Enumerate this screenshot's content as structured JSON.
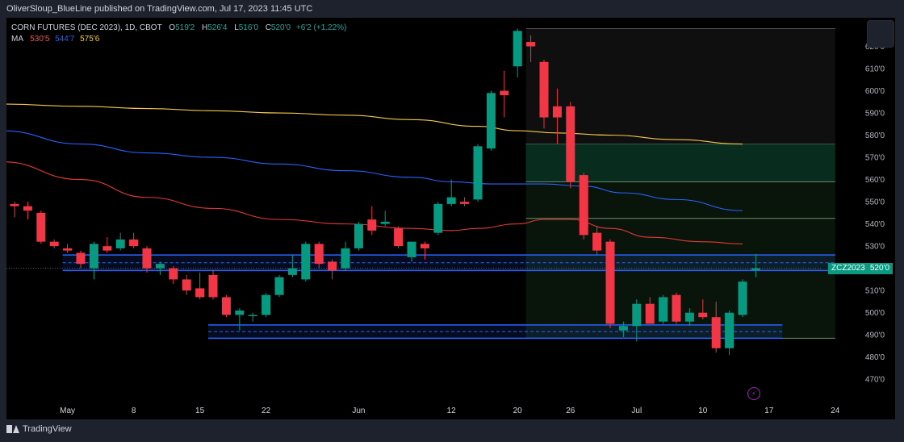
{
  "publisher_line": "OliverSloup_BlueLine published on TradingView.com, Jul 17, 2023 11:45 UTC",
  "legend": {
    "symbol": "CORN FUTURES (DEC 2023), 1D, CBOT",
    "open_label": "O",
    "open": "519'2",
    "high_label": "H",
    "high": "526'4",
    "low_label": "L",
    "low": "516'0",
    "close_label": "C",
    "close": "520'0",
    "change": "+6'2 (+1.22%)",
    "ma_label": "MA",
    "ma1": "530'5",
    "ma2": "544'7",
    "ma3": "575'6"
  },
  "price_tag": {
    "ticker": "ZCZ2023",
    "price": "520'0"
  },
  "brand": "TradingView",
  "colors": {
    "up": "#089981",
    "down": "#f23645",
    "ma1": "#e53935",
    "ma2": "#2962ff",
    "ma3": "#f7c948",
    "zone": "#2962ff"
  },
  "chart_data": {
    "type": "candlestick",
    "title": "CORN FUTURES (DEC 2023), 1D, CBOT",
    "ylim": [
      4650,
      6300
    ],
    "y_ticks": [
      {
        "v": 6200,
        "label": "620'0"
      },
      {
        "v": 6100,
        "label": "610'0"
      },
      {
        "v": 6000,
        "label": "600'0"
      },
      {
        "v": 5900,
        "label": "590'0"
      },
      {
        "v": 5800,
        "label": "580'0"
      },
      {
        "v": 5700,
        "label": "570'0"
      },
      {
        "v": 5600,
        "label": "560'0"
      },
      {
        "v": 5500,
        "label": "550'0"
      },
      {
        "v": 5400,
        "label": "540'0"
      },
      {
        "v": 5300,
        "label": "530'0"
      },
      {
        "v": 5100,
        "label": "510'0"
      },
      {
        "v": 5000,
        "label": "500'0"
      },
      {
        "v": 4900,
        "label": "490'0"
      },
      {
        "v": 4800,
        "label": "480'0"
      },
      {
        "v": 4700,
        "label": "470'0"
      }
    ],
    "x_ticks": [
      {
        "i": 4,
        "label": "May"
      },
      {
        "i": 9,
        "label": "8"
      },
      {
        "i": 14,
        "label": "15"
      },
      {
        "i": 19,
        "label": "22"
      },
      {
        "i": 26,
        "label": "Jun"
      },
      {
        "i": 33,
        "label": "12"
      },
      {
        "i": 38,
        "label": "20"
      },
      {
        "i": 42,
        "label": "26"
      },
      {
        "i": 47,
        "label": "Jul"
      },
      {
        "i": 52,
        "label": "10"
      },
      {
        "i": 57,
        "label": "17"
      },
      {
        "i": 62,
        "label": "24"
      }
    ],
    "candles": [
      {
        "o": 5490,
        "h": 5500,
        "l": 5430,
        "c": 5480
      },
      {
        "o": 5480,
        "h": 5500,
        "l": 5420,
        "c": 5460
      },
      {
        "o": 5450,
        "h": 5460,
        "l": 5310,
        "c": 5320
      },
      {
        "o": 5320,
        "h": 5330,
        "l": 5290,
        "c": 5300
      },
      {
        "o": 5290,
        "h": 5310,
        "l": 5270,
        "c": 5280
      },
      {
        "o": 5270,
        "h": 5280,
        "l": 5200,
        "c": 5220
      },
      {
        "o": 5200,
        "h": 5320,
        "l": 5150,
        "c": 5310
      },
      {
        "o": 5300,
        "h": 5340,
        "l": 5270,
        "c": 5280
      },
      {
        "o": 5290,
        "h": 5360,
        "l": 5280,
        "c": 5330
      },
      {
        "o": 5330,
        "h": 5360,
        "l": 5290,
        "c": 5300
      },
      {
        "o": 5290,
        "h": 5300,
        "l": 5180,
        "c": 5200
      },
      {
        "o": 5200,
        "h": 5230,
        "l": 5170,
        "c": 5220
      },
      {
        "o": 5200,
        "h": 5210,
        "l": 5130,
        "c": 5150
      },
      {
        "o": 5150,
        "h": 5170,
        "l": 5080,
        "c": 5100
      },
      {
        "o": 5110,
        "h": 5180,
        "l": 5060,
        "c": 5070
      },
      {
        "o": 5170,
        "h": 5190,
        "l": 5060,
        "c": 5070
      },
      {
        "o": 5070,
        "h": 5080,
        "l": 4980,
        "c": 4990
      },
      {
        "o": 4990,
        "h": 5020,
        "l": 4920,
        "c": 5010
      },
      {
        "o": 4990,
        "h": 5000,
        "l": 4960,
        "c": 4990
      },
      {
        "o": 4990,
        "h": 5090,
        "l": 4980,
        "c": 5080
      },
      {
        "o": 5080,
        "h": 5170,
        "l": 5070,
        "c": 5160
      },
      {
        "o": 5170,
        "h": 5260,
        "l": 5160,
        "c": 5200
      },
      {
        "o": 5150,
        "h": 5320,
        "l": 5140,
        "c": 5310
      },
      {
        "o": 5310,
        "h": 5320,
        "l": 5200,
        "c": 5220
      },
      {
        "o": 5230,
        "h": 5240,
        "l": 5150,
        "c": 5190
      },
      {
        "o": 5200,
        "h": 5320,
        "l": 5190,
        "c": 5290
      },
      {
        "o": 5290,
        "h": 5410,
        "l": 5280,
        "c": 5400
      },
      {
        "o": 5420,
        "h": 5480,
        "l": 5350,
        "c": 5370
      },
      {
        "o": 5400,
        "h": 5460,
        "l": 5390,
        "c": 5410
      },
      {
        "o": 5380,
        "h": 5390,
        "l": 5290,
        "c": 5300
      },
      {
        "o": 5250,
        "h": 5320,
        "l": 5230,
        "c": 5320
      },
      {
        "o": 5310,
        "h": 5320,
        "l": 5240,
        "c": 5290
      },
      {
        "o": 5360,
        "h": 5500,
        "l": 5350,
        "c": 5490
      },
      {
        "o": 5490,
        "h": 5600,
        "l": 5480,
        "c": 5520
      },
      {
        "o": 5500,
        "h": 5520,
        "l": 5480,
        "c": 5490
      },
      {
        "o": 5510,
        "h": 5760,
        "l": 5500,
        "c": 5750
      },
      {
        "o": 5740,
        "h": 6000,
        "l": 5730,
        "c": 5990
      },
      {
        "o": 6000,
        "h": 6090,
        "l": 5880,
        "c": 5980
      },
      {
        "o": 6110,
        "h": 6280,
        "l": 6060,
        "c": 6270
      },
      {
        "o": 6220,
        "h": 6250,
        "l": 6130,
        "c": 6200
      },
      {
        "o": 6130,
        "h": 6140,
        "l": 5830,
        "c": 5880
      },
      {
        "o": 5930,
        "h": 6010,
        "l": 5760,
        "c": 5880
      },
      {
        "o": 5930,
        "h": 5950,
        "l": 5560,
        "c": 5590
      },
      {
        "o": 5620,
        "h": 5630,
        "l": 5330,
        "c": 5350
      },
      {
        "o": 5360,
        "h": 5390,
        "l": 5260,
        "c": 5280
      },
      {
        "o": 5320,
        "h": 5330,
        "l": 4930,
        "c": 4950
      },
      {
        "o": 4920,
        "h": 4960,
        "l": 4890,
        "c": 4940
      },
      {
        "o": 4940,
        "h": 5060,
        "l": 4870,
        "c": 5040
      },
      {
        "o": 5040,
        "h": 5070,
        "l": 4950,
        "c": 4950
      },
      {
        "o": 4960,
        "h": 5080,
        "l": 4950,
        "c": 5070
      },
      {
        "o": 5080,
        "h": 5090,
        "l": 4950,
        "c": 4960
      },
      {
        "o": 4960,
        "h": 5020,
        "l": 4940,
        "c": 5000
      },
      {
        "o": 5000,
        "h": 5060,
        "l": 4970,
        "c": 4980
      },
      {
        "o": 4980,
        "h": 5050,
        "l": 4820,
        "c": 4840
      },
      {
        "o": 4840,
        "h": 5010,
        "l": 4810,
        "c": 5000
      },
      {
        "o": 4990,
        "h": 5150,
        "l": 4980,
        "c": 5140
      },
      {
        "o": 5192,
        "h": 5265,
        "l": 5160,
        "c": 5200
      }
    ],
    "series": [
      {
        "name": "MA 530'5",
        "anchors": [
          [
            -1,
            5680
          ],
          [
            5,
            5600
          ],
          [
            10,
            5520
          ],
          [
            15,
            5470
          ],
          [
            20,
            5420
          ],
          [
            25,
            5400
          ],
          [
            30,
            5380
          ],
          [
            33,
            5370
          ],
          [
            35,
            5380
          ],
          [
            38,
            5400
          ],
          [
            40,
            5420
          ],
          [
            42,
            5420
          ],
          [
            45,
            5380
          ],
          [
            48,
            5340
          ],
          [
            52,
            5320
          ],
          [
            55,
            5310
          ]
        ]
      },
      {
        "name": "MA 544'7",
        "anchors": [
          [
            -1,
            5820
          ],
          [
            5,
            5760
          ],
          [
            10,
            5720
          ],
          [
            15,
            5700
          ],
          [
            20,
            5670
          ],
          [
            25,
            5640
          ],
          [
            30,
            5610
          ],
          [
            33,
            5590
          ],
          [
            36,
            5580
          ],
          [
            40,
            5580
          ],
          [
            43,
            5570
          ],
          [
            46,
            5540
          ],
          [
            50,
            5510
          ],
          [
            55,
            5460
          ]
        ]
      },
      {
        "name": "MA 575'6",
        "anchors": [
          [
            -1,
            5940
          ],
          [
            5,
            5930
          ],
          [
            10,
            5920
          ],
          [
            15,
            5910
          ],
          [
            20,
            5900
          ],
          [
            25,
            5890
          ],
          [
            30,
            5870
          ],
          [
            35,
            5840
          ],
          [
            38,
            5820
          ],
          [
            41,
            5810
          ],
          [
            45,
            5800
          ],
          [
            50,
            5780
          ],
          [
            55,
            5760
          ]
        ]
      }
    ],
    "zones": [
      {
        "from_i": 4,
        "to_i": 62,
        "top": 5260,
        "bottom": 5190,
        "mid": 5225
      },
      {
        "from_i": 15,
        "to_i": 58,
        "top": 4945,
        "bottom": 4885,
        "mid": 4915
      }
    ],
    "position_box": {
      "from_i": 39,
      "to_i": 62,
      "top": 6280,
      "mid": 5760,
      "bottom": 4885,
      "levels": [
        5590,
        5425
      ]
    },
    "last_price": 5200
  }
}
